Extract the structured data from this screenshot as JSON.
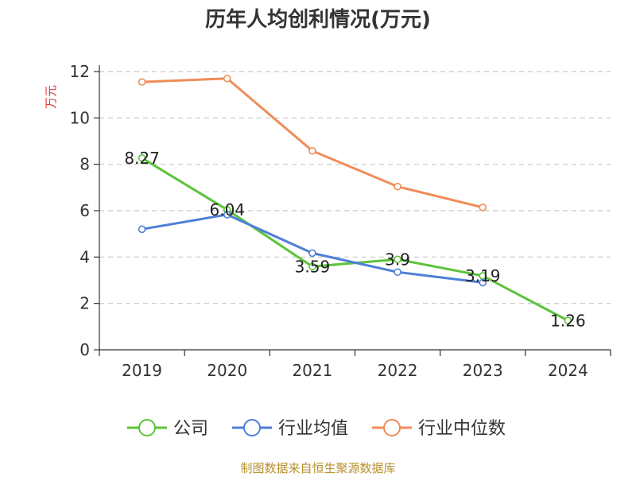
{
  "chart_data": {
    "type": "line",
    "title": "历年人均创利情况(万元)",
    "ylabel": "万元",
    "xlabel": "",
    "categories": [
      "2019",
      "2020",
      "2021",
      "2022",
      "2023",
      "2024"
    ],
    "ylim": [
      0,
      12
    ],
    "yticks": [
      0,
      2,
      4,
      6,
      8,
      10,
      12
    ],
    "grid": true,
    "legend_position": "bottom",
    "series": [
      {
        "name": "公司",
        "color": "#5cc33a",
        "values": [
          8.27,
          6.04,
          3.59,
          3.9,
          3.19,
          1.26
        ],
        "labels": [
          "8.27",
          "6.04",
          "3.59",
          "3.9",
          "3.19",
          "1.26"
        ]
      },
      {
        "name": "行业均值",
        "color": "#4f7fd6",
        "values": [
          5.2,
          5.83,
          4.17,
          3.35,
          2.9,
          null
        ]
      },
      {
        "name": "行业中位数",
        "color": "#f08c5a",
        "values": [
          11.55,
          11.7,
          8.58,
          7.04,
          6.14,
          null
        ]
      }
    ]
  },
  "source": "制图数据来自恒生聚源数据库"
}
